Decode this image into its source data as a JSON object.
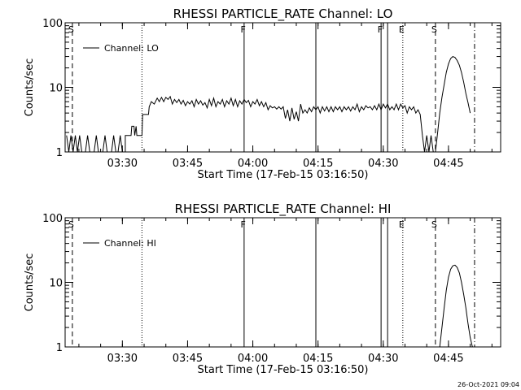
{
  "chart_data": [
    {
      "type": "line",
      "title": "RHESSI PARTICLE_RATE Channel: LO",
      "xlabel": "Start Time (17-Feb-15 03:16:50)",
      "ylabel": "Counts/sec",
      "yscale": "log",
      "ylim": [
        1,
        100
      ],
      "xlim": [
        "03:16:50",
        "04:57:00"
      ],
      "xticks": [
        "03:30",
        "03:45",
        "04:00",
        "04:15",
        "04:30",
        "04:45"
      ],
      "yticks": [
        "1",
        "10",
        "100"
      ],
      "legend": {
        "entries": [
          "Channel: LO"
        ],
        "position": "top-left"
      },
      "grid": false,
      "event_markers": [
        {
          "label": "S",
          "time": "03:18:30",
          "style": "dashed"
        },
        {
          "label": "",
          "time": "03:34:30",
          "style": "dotted"
        },
        {
          "label": "F",
          "time": "03:58:00",
          "style": "solid"
        },
        {
          "label": "",
          "time": "04:14:30",
          "style": "solid"
        },
        {
          "label": "F",
          "time": "04:29:30",
          "style": "solid"
        },
        {
          "label": "",
          "time": "04:31:00",
          "style": "solid"
        },
        {
          "label": "E",
          "time": "04:34:30",
          "style": "dotted"
        },
        {
          "label": "S",
          "time": "04:42:00",
          "style": "dashed"
        },
        {
          "label": "",
          "time": "04:51:00",
          "style": "dashdot"
        }
      ],
      "series": [
        {
          "name": "Channel: LO",
          "points": [
            [
              "03:17:10",
              1.8
            ],
            [
              "03:17:40",
              1.0
            ],
            [
              "03:18:10",
              1.8
            ],
            [
              "03:18:40",
              1.0
            ],
            [
              "03:19:10",
              1.8
            ],
            [
              "03:19:40",
              1.0
            ],
            [
              "03:20:10",
              1.8
            ],
            [
              "03:20:40",
              1.0
            ],
            [
              "03:21:30",
              1.0
            ],
            [
              "03:22:00",
              1.8
            ],
            [
              "03:22:30",
              1.0
            ],
            [
              "03:23:30",
              1.0
            ],
            [
              "03:24:00",
              1.8
            ],
            [
              "03:24:30",
              1.0
            ],
            [
              "03:25:30",
              1.0
            ],
            [
              "03:26:00",
              1.8
            ],
            [
              "03:26:30",
              1.0
            ],
            [
              "03:27:30",
              1.0
            ],
            [
              "03:28:00",
              1.8
            ],
            [
              "03:28:30",
              1.0
            ],
            [
              "03:29:00",
              1.0
            ],
            [
              "03:29:30",
              1.8
            ],
            [
              "03:30:00",
              1.0
            ],
            [
              "03:30:40",
              1.0
            ],
            [
              "03:30:40",
              1.8
            ],
            [
              "03:32:00",
              1.8
            ],
            [
              "03:32:10",
              2.5
            ],
            [
              "03:32:40",
              2.5
            ],
            [
              "03:32:50",
              1.8
            ],
            [
              "03:33:10",
              2.5
            ],
            [
              "03:33:20",
              1.8
            ],
            [
              "03:34:30",
              1.8
            ],
            [
              "03:34:40",
              3.8
            ],
            [
              "03:36:00",
              3.8
            ],
            [
              "03:36:10",
              5.0
            ],
            [
              "03:36:40",
              6.0
            ],
            [
              "03:37:20",
              5.5
            ],
            [
              "03:38:00",
              6.8
            ],
            [
              "03:38:30",
              6.0
            ],
            [
              "03:39:00",
              7.0
            ],
            [
              "03:39:30",
              6.0
            ],
            [
              "03:40:00",
              7.0
            ],
            [
              "03:40:30",
              6.5
            ],
            [
              "03:41:00",
              7.2
            ],
            [
              "03:41:30",
              5.5
            ],
            [
              "03:42:00",
              6.5
            ],
            [
              "03:42:30",
              5.8
            ],
            [
              "03:43:00",
              6.5
            ],
            [
              "03:43:30",
              5.5
            ],
            [
              "03:44:00",
              6.3
            ],
            [
              "03:44:30",
              5.2
            ],
            [
              "03:45:00",
              6.0
            ],
            [
              "03:45:30",
              5.5
            ],
            [
              "03:46:00",
              6.2
            ],
            [
              "03:46:30",
              5.0
            ],
            [
              "03:47:00",
              6.5
            ],
            [
              "03:47:30",
              5.5
            ],
            [
              "03:48:00",
              6.2
            ],
            [
              "03:48:30",
              5.3
            ],
            [
              "03:49:00",
              5.8
            ],
            [
              "03:49:30",
              4.8
            ],
            [
              "03:50:00",
              6.5
            ],
            [
              "03:50:30",
              5.2
            ],
            [
              "03:51:00",
              6.8
            ],
            [
              "03:51:30",
              5.0
            ],
            [
              "03:52:00",
              6.0
            ],
            [
              "03:52:30",
              5.5
            ],
            [
              "03:53:00",
              6.5
            ],
            [
              "03:53:30",
              5.0
            ],
            [
              "03:54:00",
              6.2
            ],
            [
              "03:54:30",
              5.5
            ],
            [
              "03:55:00",
              6.8
            ],
            [
              "03:55:30",
              5.2
            ],
            [
              "03:56:00",
              6.5
            ],
            [
              "03:56:30",
              5.0
            ],
            [
              "03:57:00",
              6.2
            ],
            [
              "03:57:30",
              5.5
            ],
            [
              "03:58:00",
              6.5
            ],
            [
              "03:58:30",
              5.8
            ],
            [
              "03:59:00",
              6.3
            ],
            [
              "03:59:30",
              5.0
            ],
            [
              "04:00:00",
              6.0
            ],
            [
              "04:00:30",
              5.5
            ],
            [
              "04:01:00",
              6.5
            ],
            [
              "04:01:30",
              5.2
            ],
            [
              "04:02:00",
              6.0
            ],
            [
              "04:02:30",
              5.0
            ],
            [
              "04:03:00",
              5.8
            ],
            [
              "04:03:30",
              4.5
            ],
            [
              "04:04:00",
              5.2
            ],
            [
              "04:04:30",
              4.8
            ],
            [
              "04:05:00",
              5.0
            ],
            [
              "04:05:30",
              4.6
            ],
            [
              "04:06:00",
              5.0
            ],
            [
              "04:06:30",
              4.6
            ],
            [
              "04:07:00",
              5.0
            ],
            [
              "04:07:30",
              3.3
            ],
            [
              "04:08:00",
              4.5
            ],
            [
              "04:08:30",
              3.0
            ],
            [
              "04:09:00",
              4.8
            ],
            [
              "04:09:30",
              3.2
            ],
            [
              "04:10:00",
              4.2
            ],
            [
              "04:10:30",
              3.0
            ],
            [
              "04:11:00",
              5.5
            ],
            [
              "04:11:30",
              4.0
            ],
            [
              "04:12:00",
              4.5
            ],
            [
              "04:12:30",
              4.0
            ],
            [
              "04:13:00",
              4.8
            ],
            [
              "04:13:30",
              4.2
            ],
            [
              "04:14:00",
              5.0
            ],
            [
              "04:14:30",
              4.5
            ],
            [
              "04:15:00",
              5.0
            ],
            [
              "04:15:30",
              4.0
            ],
            [
              "04:16:00",
              5.0
            ],
            [
              "04:16:30",
              4.3
            ],
            [
              "04:17:00",
              5.0
            ],
            [
              "04:17:30",
              4.2
            ],
            [
              "04:18:00",
              5.0
            ],
            [
              "04:18:30",
              4.2
            ],
            [
              "04:19:00",
              5.0
            ],
            [
              "04:19:30",
              4.5
            ],
            [
              "04:20:00",
              5.0
            ],
            [
              "04:20:30",
              4.2
            ],
            [
              "04:21:00",
              5.0
            ],
            [
              "04:21:30",
              4.5
            ],
            [
              "04:22:00",
              5.0
            ],
            [
              "04:22:30",
              4.3
            ],
            [
              "04:23:00",
              5.0
            ],
            [
              "04:23:30",
              4.5
            ],
            [
              "04:24:00",
              5.5
            ],
            [
              "04:24:30",
              4.2
            ],
            [
              "04:25:00",
              5.0
            ],
            [
              "04:25:30",
              4.5
            ],
            [
              "04:26:00",
              5.2
            ],
            [
              "04:26:30",
              4.8
            ],
            [
              "04:27:00",
              5.0
            ],
            [
              "04:27:30",
              4.5
            ],
            [
              "04:28:00",
              5.2
            ],
            [
              "04:28:30",
              4.5
            ],
            [
              "04:29:00",
              5.5
            ],
            [
              "04:29:30",
              4.5
            ],
            [
              "04:30:00",
              5.5
            ],
            [
              "04:30:30",
              4.8
            ],
            [
              "04:31:00",
              5.5
            ],
            [
              "04:31:30",
              4.5
            ],
            [
              "04:32:00",
              5.0
            ],
            [
              "04:32:30",
              4.5
            ],
            [
              "04:33:00",
              5.5
            ],
            [
              "04:33:30",
              4.5
            ],
            [
              "04:34:00",
              5.5
            ],
            [
              "04:34:30",
              4.8
            ],
            [
              "04:35:00",
              5.2
            ],
            [
              "04:35:30",
              4.0
            ],
            [
              "04:36:00",
              5.0
            ],
            [
              "04:36:30",
              4.5
            ],
            [
              "04:37:00",
              5.0
            ],
            [
              "04:37:30",
              4.0
            ],
            [
              "04:38:00",
              4.5
            ],
            [
              "04:38:30",
              3.8
            ],
            [
              "04:39:00",
              1.8
            ],
            [
              "04:39:30",
              1.0
            ],
            [
              "04:40:00",
              1.8
            ],
            [
              "04:40:30",
              1.0
            ],
            [
              "04:41:00",
              1.8
            ],
            [
              "04:41:30",
              1.0
            ],
            [
              "04:42:00",
              1.0
            ],
            [
              "04:42:30",
              2.0
            ],
            [
              "04:43:00",
              4.0
            ],
            [
              "04:43:30",
              7.0
            ],
            [
              "04:44:00",
              11.0
            ],
            [
              "04:44:30",
              17.0
            ],
            [
              "04:45:00",
              23.0
            ],
            [
              "04:45:30",
              28.0
            ],
            [
              "04:46:00",
              30.0
            ],
            [
              "04:46:30",
              29.0
            ],
            [
              "04:47:00",
              26.0
            ],
            [
              "04:47:30",
              22.0
            ],
            [
              "04:48:00",
              17.0
            ],
            [
              "04:48:30",
              12.0
            ],
            [
              "04:49:00",
              8.0
            ],
            [
              "04:49:30",
              5.8
            ],
            [
              "04:50:00",
              4.0
            ]
          ]
        }
      ]
    },
    {
      "type": "line",
      "title": "RHESSI PARTICLE_RATE Channel: HI",
      "xlabel": "Start Time (17-Feb-15 03:16:50)",
      "ylabel": "Counts/sec",
      "yscale": "log",
      "ylim": [
        1,
        100
      ],
      "xlim": [
        "03:16:50",
        "04:57:00"
      ],
      "xticks": [
        "03:30",
        "03:45",
        "04:00",
        "04:15",
        "04:30",
        "04:45"
      ],
      "yticks": [
        "1",
        "10",
        "100"
      ],
      "legend": {
        "entries": [
          "Channel: HI"
        ],
        "position": "top-left"
      },
      "grid": false,
      "event_markers": [
        {
          "label": "S",
          "time": "03:18:30",
          "style": "dashed"
        },
        {
          "label": "",
          "time": "03:34:30",
          "style": "dotted"
        },
        {
          "label": "F",
          "time": "03:58:00",
          "style": "solid"
        },
        {
          "label": "",
          "time": "04:14:30",
          "style": "solid"
        },
        {
          "label": "",
          "time": "04:29:30",
          "style": "solid"
        },
        {
          "label": "",
          "time": "04:31:00",
          "style": "solid"
        },
        {
          "label": "E",
          "time": "04:34:30",
          "style": "dotted"
        },
        {
          "label": "S",
          "time": "04:42:00",
          "style": "dashed"
        },
        {
          "label": "",
          "time": "04:51:00",
          "style": "dashdot"
        }
      ],
      "series": [
        {
          "name": "Channel: HI",
          "points": [
            [
              "04:43:00",
              1.0
            ],
            [
              "04:43:30",
              2.0
            ],
            [
              "04:44:00",
              4.0
            ],
            [
              "04:44:30",
              7.5
            ],
            [
              "04:45:00",
              12.0
            ],
            [
              "04:45:30",
              16.0
            ],
            [
              "04:46:00",
              18.0
            ],
            [
              "04:46:30",
              18.5
            ],
            [
              "04:47:00",
              17.0
            ],
            [
              "04:47:30",
              14.0
            ],
            [
              "04:48:00",
              10.0
            ],
            [
              "04:48:30",
              6.5
            ],
            [
              "04:49:00",
              4.0
            ],
            [
              "04:49:30",
              2.3
            ],
            [
              "04:50:00",
              1.4
            ],
            [
              "04:50:30",
              1.0
            ]
          ]
        }
      ]
    }
  ],
  "timestamp": "26-Oct-2021 09:04"
}
